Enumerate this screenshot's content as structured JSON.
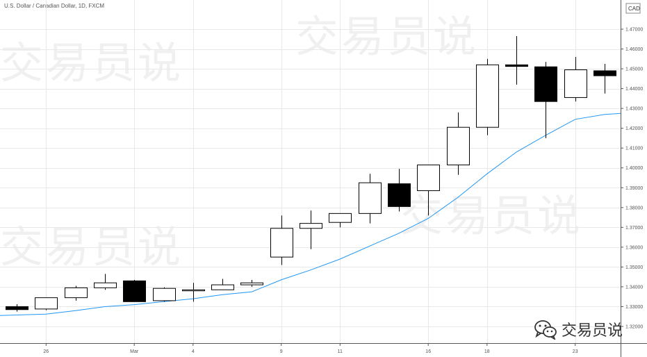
{
  "title": "U.S. Dollar / Canadian Dollar, 1D, FXCM",
  "watermark_text": "交易员说",
  "brand_text": "交易员说",
  "brand_icon": "wechat-icon",
  "colors": {
    "up_fill": "#ffffff",
    "down_fill": "#000000",
    "candle_stroke": "#000000",
    "ma_line": "#2196f3",
    "grid": "#e8e8e8",
    "axis_text": "#555555"
  },
  "chart_data": {
    "type": "candlestick",
    "symbol": "USDCAD",
    "interval": "1D",
    "source": "FXCM",
    "currency_label": "CAD",
    "ylim": [
      1.312,
      1.48
    ],
    "y_ticks": [
      1.32,
      1.33,
      1.34,
      1.35,
      1.36,
      1.37,
      1.38,
      1.39,
      1.4,
      1.41,
      1.42,
      1.43,
      1.44,
      1.45,
      1.46,
      1.47
    ],
    "x_tick_labels": [
      {
        "index": 1,
        "label": "26"
      },
      {
        "index": 4,
        "label": "Mar"
      },
      {
        "index": 6,
        "label": "4"
      },
      {
        "index": 9,
        "label": "9"
      },
      {
        "index": 11,
        "label": "11"
      },
      {
        "index": 14,
        "label": "16"
      },
      {
        "index": 16,
        "label": "18"
      },
      {
        "index": 19,
        "label": "23"
      }
    ],
    "candles": [
      {
        "open": 1.33,
        "high": 1.3312,
        "low": 1.3275,
        "close": 1.3285
      },
      {
        "open": 1.3288,
        "high": 1.3345,
        "low": 1.3282,
        "close": 1.3345
      },
      {
        "open": 1.3345,
        "high": 1.3405,
        "low": 1.333,
        "close": 1.3395
      },
      {
        "open": 1.3395,
        "high": 1.3465,
        "low": 1.3385,
        "close": 1.342
      },
      {
        "open": 1.343,
        "high": 1.3435,
        "low": 1.3325,
        "close": 1.3325
      },
      {
        "open": 1.333,
        "high": 1.3397,
        "low": 1.3325,
        "close": 1.3392
      },
      {
        "open": 1.338,
        "high": 1.342,
        "low": 1.3325,
        "close": 1.3385
      },
      {
        "open": 1.3385,
        "high": 1.344,
        "low": 1.3385,
        "close": 1.341
      },
      {
        "open": 1.341,
        "high": 1.3435,
        "low": 1.34,
        "close": 1.342
      },
      {
        "open": 1.355,
        "high": 1.376,
        "low": 1.351,
        "close": 1.3695
      },
      {
        "open": 1.3695,
        "high": 1.3785,
        "low": 1.359,
        "close": 1.372
      },
      {
        "open": 1.3725,
        "high": 1.377,
        "low": 1.37,
        "close": 1.377
      },
      {
        "open": 1.377,
        "high": 1.397,
        "low": 1.372,
        "close": 1.3925
      },
      {
        "open": 1.392,
        "high": 1.3995,
        "low": 1.378,
        "close": 1.3805
      },
      {
        "open": 1.3885,
        "high": 1.4015,
        "low": 1.376,
        "close": 1.4015
      },
      {
        "open": 1.4015,
        "high": 1.428,
        "low": 1.3965,
        "close": 1.4205
      },
      {
        "open": 1.4205,
        "high": 1.455,
        "low": 1.4165,
        "close": 1.452
      },
      {
        "open": 1.452,
        "high": 1.4665,
        "low": 1.442,
        "close": 1.4512
      },
      {
        "open": 1.451,
        "high": 1.4535,
        "low": 1.415,
        "close": 1.4335
      },
      {
        "open": 1.4355,
        "high": 1.456,
        "low": 1.4335,
        "close": 1.4495
      },
      {
        "open": 1.449,
        "high": 1.4525,
        "low": 1.4375,
        "close": 1.4465
      }
    ],
    "moving_average": [
      1.3255,
      1.3262,
      1.328,
      1.33,
      1.331,
      1.3325,
      1.334,
      1.336,
      1.3375,
      1.3435,
      1.3485,
      1.354,
      1.3605,
      1.367,
      1.3745,
      1.385,
      1.397,
      1.408,
      1.4165,
      1.4245,
      1.427
    ]
  }
}
